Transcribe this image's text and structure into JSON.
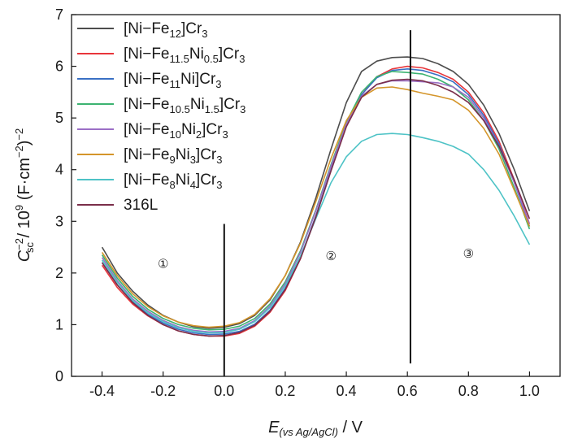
{
  "chart_data": {
    "type": "line",
    "xlabel": {
      "main": "E",
      "sub": "(vs Ag/AgCl)",
      "suffix": " / V"
    },
    "ylabel": {
      "c": "C",
      "sup1": "−2",
      "sub": "sc",
      "mid": " / 10",
      "sup2": "9",
      "paren": " (F·cm",
      "sup3": "−2",
      "close": ")",
      "sup4": "−2"
    },
    "xlim": [
      -0.5,
      1.1
    ],
    "ylim": [
      0,
      7
    ],
    "xticks": [
      "-0.4",
      "-0.2",
      "0.0",
      "0.2",
      "0.4",
      "0.6",
      "0.8",
      "1.0"
    ],
    "xtick_values": [
      -0.4,
      -0.2,
      0.0,
      0.2,
      0.4,
      0.6,
      0.8,
      1.0
    ],
    "yticks": [
      "0",
      "1",
      "2",
      "3",
      "4",
      "5",
      "6",
      "7"
    ],
    "ytick_values": [
      0,
      1,
      2,
      3,
      4,
      5,
      6,
      7
    ],
    "grid": false,
    "legend_position": "top-left",
    "region_labels": [
      {
        "text": "①",
        "x": -0.2,
        "y": 2.1
      },
      {
        "text": "②",
        "x": 0.35,
        "y": 2.25
      },
      {
        "text": "③",
        "x": 0.8,
        "y": 2.3
      }
    ],
    "vlines": [
      {
        "x": 0.0,
        "y0": 0,
        "y1": 2.95
      },
      {
        "x": 0.61,
        "y0": 0.25,
        "y1": 6.7
      }
    ],
    "series": [
      {
        "name": "[Ni–Fe12]Cr3",
        "legend_parts": [
          [
            "t",
            "[Ni−Fe"
          ],
          [
            "sub",
            "12"
          ],
          [
            "t",
            "]Cr"
          ],
          [
            "sub",
            "3"
          ]
        ],
        "color": "#4d4d4d",
        "x": [
          -0.4,
          -0.35,
          -0.3,
          -0.25,
          -0.2,
          -0.15,
          -0.1,
          -0.05,
          0.0,
          0.05,
          0.1,
          0.15,
          0.2,
          0.25,
          0.3,
          0.35,
          0.4,
          0.45,
          0.5,
          0.55,
          0.6,
          0.65,
          0.7,
          0.75,
          0.8,
          0.85,
          0.9,
          0.95,
          1.0
        ],
        "y": [
          2.5,
          2.0,
          1.65,
          1.38,
          1.18,
          1.05,
          0.96,
          0.93,
          0.95,
          1.02,
          1.18,
          1.48,
          1.95,
          2.6,
          3.45,
          4.4,
          5.3,
          5.9,
          6.1,
          6.17,
          6.18,
          6.15,
          6.05,
          5.9,
          5.65,
          5.25,
          4.7,
          4.0,
          3.2
        ]
      },
      {
        "name": "[Ni–Fe11.5Ni0.5]Cr3",
        "legend_parts": [
          [
            "t",
            "[Ni−Fe"
          ],
          [
            "sub",
            "11.5"
          ],
          [
            "t",
            "Ni"
          ],
          [
            "sub",
            "0.5"
          ],
          [
            "t",
            "]Cr"
          ],
          [
            "sub",
            "3"
          ]
        ],
        "color": "#e8353a",
        "x": [
          -0.4,
          -0.35,
          -0.3,
          -0.25,
          -0.2,
          -0.15,
          -0.1,
          -0.05,
          0.0,
          0.05,
          0.1,
          0.15,
          0.2,
          0.25,
          0.3,
          0.35,
          0.4,
          0.45,
          0.5,
          0.55,
          0.6,
          0.65,
          0.7,
          0.75,
          0.8,
          0.85,
          0.9,
          0.95,
          1.0
        ],
        "y": [
          2.15,
          1.72,
          1.4,
          1.17,
          1.0,
          0.88,
          0.81,
          0.78,
          0.78,
          0.83,
          0.97,
          1.24,
          1.66,
          2.28,
          3.1,
          4.0,
          4.85,
          5.45,
          5.8,
          5.95,
          6.0,
          5.97,
          5.88,
          5.75,
          5.5,
          5.1,
          4.55,
          3.8,
          2.95
        ]
      },
      {
        "name": "[Ni–Fe11Ni]Cr3",
        "legend_parts": [
          [
            "t",
            "[Ni−Fe"
          ],
          [
            "sub",
            "11"
          ],
          [
            "t",
            "Ni]Cr"
          ],
          [
            "sub",
            "3"
          ]
        ],
        "color": "#3a70c4",
        "x": [
          -0.4,
          -0.35,
          -0.3,
          -0.25,
          -0.2,
          -0.15,
          -0.1,
          -0.05,
          0.0,
          0.05,
          0.1,
          0.15,
          0.2,
          0.25,
          0.3,
          0.35,
          0.4,
          0.45,
          0.5,
          0.55,
          0.6,
          0.65,
          0.7,
          0.75,
          0.8,
          0.85,
          0.9,
          0.95,
          1.0
        ],
        "y": [
          2.2,
          1.77,
          1.44,
          1.2,
          1.03,
          0.91,
          0.84,
          0.81,
          0.82,
          0.87,
          1.01,
          1.28,
          1.7,
          2.3,
          3.1,
          4.0,
          4.85,
          5.45,
          5.78,
          5.92,
          5.95,
          5.92,
          5.83,
          5.7,
          5.45,
          5.05,
          4.5,
          3.75,
          2.9
        ]
      },
      {
        "name": "[Ni–Fe10.5Ni1.5]Cr3",
        "legend_parts": [
          [
            "t",
            "[Ni−Fe"
          ],
          [
            "sub",
            "10.5"
          ],
          [
            "t",
            "Ni"
          ],
          [
            "sub",
            "1.5"
          ],
          [
            "t",
            "]Cr"
          ],
          [
            "sub",
            "3"
          ]
        ],
        "color": "#3cb371",
        "x": [
          -0.4,
          -0.35,
          -0.3,
          -0.25,
          -0.2,
          -0.15,
          -0.1,
          -0.05,
          0.0,
          0.05,
          0.1,
          0.15,
          0.2,
          0.25,
          0.3,
          0.35,
          0.4,
          0.45,
          0.5,
          0.55,
          0.6,
          0.65,
          0.7,
          0.75,
          0.8,
          0.85,
          0.9,
          0.95,
          1.0
        ],
        "y": [
          2.35,
          1.9,
          1.55,
          1.3,
          1.12,
          1.0,
          0.93,
          0.9,
          0.91,
          0.97,
          1.12,
          1.4,
          1.83,
          2.43,
          3.22,
          4.1,
          4.92,
          5.5,
          5.8,
          5.9,
          5.88,
          5.85,
          5.75,
          5.6,
          5.35,
          4.95,
          4.4,
          3.65,
          2.85
        ]
      },
      {
        "name": "[Ni–Fe10Ni2]Cr3",
        "legend_parts": [
          [
            "t",
            "[Ni−Fe"
          ],
          [
            "sub",
            "10"
          ],
          [
            "t",
            "Ni"
          ],
          [
            "sub",
            "2"
          ],
          [
            "t",
            "]Cr"
          ],
          [
            "sub",
            "3"
          ]
        ],
        "color": "#9b6fc6",
        "x": [
          -0.4,
          -0.35,
          -0.3,
          -0.25,
          -0.2,
          -0.15,
          -0.1,
          -0.05,
          0.0,
          0.05,
          0.1,
          0.15,
          0.2,
          0.25,
          0.3,
          0.35,
          0.4,
          0.45,
          0.5,
          0.55,
          0.6,
          0.65,
          0.7,
          0.75,
          0.8,
          0.85,
          0.9,
          0.95,
          1.0
        ],
        "y": [
          2.3,
          1.85,
          1.5,
          1.26,
          1.08,
          0.96,
          0.89,
          0.86,
          0.87,
          0.93,
          1.08,
          1.36,
          1.79,
          2.4,
          3.2,
          4.07,
          4.88,
          5.42,
          5.65,
          5.72,
          5.72,
          5.7,
          5.68,
          5.6,
          5.4,
          5.0,
          4.45,
          3.75,
          2.95
        ]
      },
      {
        "name": "[Ni–Fe9Ni3]Cr3",
        "legend_parts": [
          [
            "t",
            "[Ni−Fe"
          ],
          [
            "sub",
            "9"
          ],
          [
            "t",
            "Ni"
          ],
          [
            "sub",
            "3"
          ],
          [
            "t",
            "]Cr"
          ],
          [
            "sub",
            "3"
          ]
        ],
        "color": "#d4952a",
        "x": [
          -0.4,
          -0.35,
          -0.3,
          -0.25,
          -0.2,
          -0.15,
          -0.1,
          -0.05,
          0.0,
          0.05,
          0.1,
          0.15,
          0.2,
          0.25,
          0.3,
          0.35,
          0.4,
          0.45,
          0.5,
          0.55,
          0.6,
          0.65,
          0.7,
          0.75,
          0.8,
          0.85,
          0.9,
          0.95,
          1.0
        ],
        "y": [
          2.4,
          1.95,
          1.6,
          1.35,
          1.17,
          1.05,
          0.98,
          0.95,
          0.97,
          1.04,
          1.2,
          1.5,
          1.95,
          2.58,
          3.38,
          4.22,
          4.95,
          5.4,
          5.58,
          5.6,
          5.55,
          5.48,
          5.42,
          5.35,
          5.15,
          4.8,
          4.3,
          3.6,
          2.9
        ]
      },
      {
        "name": "[Ni–Fe8Ni4]Cr3",
        "legend_parts": [
          [
            "t",
            "[Ni−Fe"
          ],
          [
            "sub",
            "8"
          ],
          [
            "t",
            "Ni"
          ],
          [
            "sub",
            "4"
          ],
          [
            "t",
            "]Cr"
          ],
          [
            "sub",
            "3"
          ]
        ],
        "color": "#4ec3c6",
        "x": [
          -0.4,
          -0.35,
          -0.3,
          -0.25,
          -0.2,
          -0.15,
          -0.1,
          -0.05,
          0.0,
          0.05,
          0.1,
          0.15,
          0.2,
          0.25,
          0.3,
          0.35,
          0.4,
          0.45,
          0.5,
          0.55,
          0.6,
          0.65,
          0.7,
          0.75,
          0.8,
          0.85,
          0.9,
          0.95,
          1.0
        ],
        "y": [
          2.25,
          1.82,
          1.47,
          1.23,
          1.06,
          0.94,
          0.87,
          0.84,
          0.85,
          0.91,
          1.06,
          1.33,
          1.75,
          2.33,
          3.05,
          3.75,
          4.25,
          4.55,
          4.68,
          4.7,
          4.68,
          4.62,
          4.55,
          4.45,
          4.3,
          4.0,
          3.6,
          3.1,
          2.55
        ]
      },
      {
        "name": "316L",
        "legend_parts": [
          [
            "t",
            "316L"
          ]
        ],
        "color": "#7a2e4a",
        "x": [
          -0.4,
          -0.35,
          -0.3,
          -0.25,
          -0.2,
          -0.15,
          -0.1,
          -0.05,
          0.0,
          0.05,
          0.1,
          0.15,
          0.2,
          0.25,
          0.3,
          0.35,
          0.4,
          0.45,
          0.5,
          0.55,
          0.6,
          0.65,
          0.7,
          0.75,
          0.8,
          0.85,
          0.9,
          0.95,
          1.0
        ],
        "y": [
          2.2,
          1.77,
          1.43,
          1.18,
          1.0,
          0.88,
          0.81,
          0.78,
          0.79,
          0.85,
          0.99,
          1.26,
          1.68,
          2.28,
          3.08,
          3.98,
          4.83,
          5.4,
          5.65,
          5.73,
          5.75,
          5.72,
          5.63,
          5.5,
          5.3,
          4.95,
          4.45,
          3.8,
          3.05
        ]
      }
    ]
  }
}
